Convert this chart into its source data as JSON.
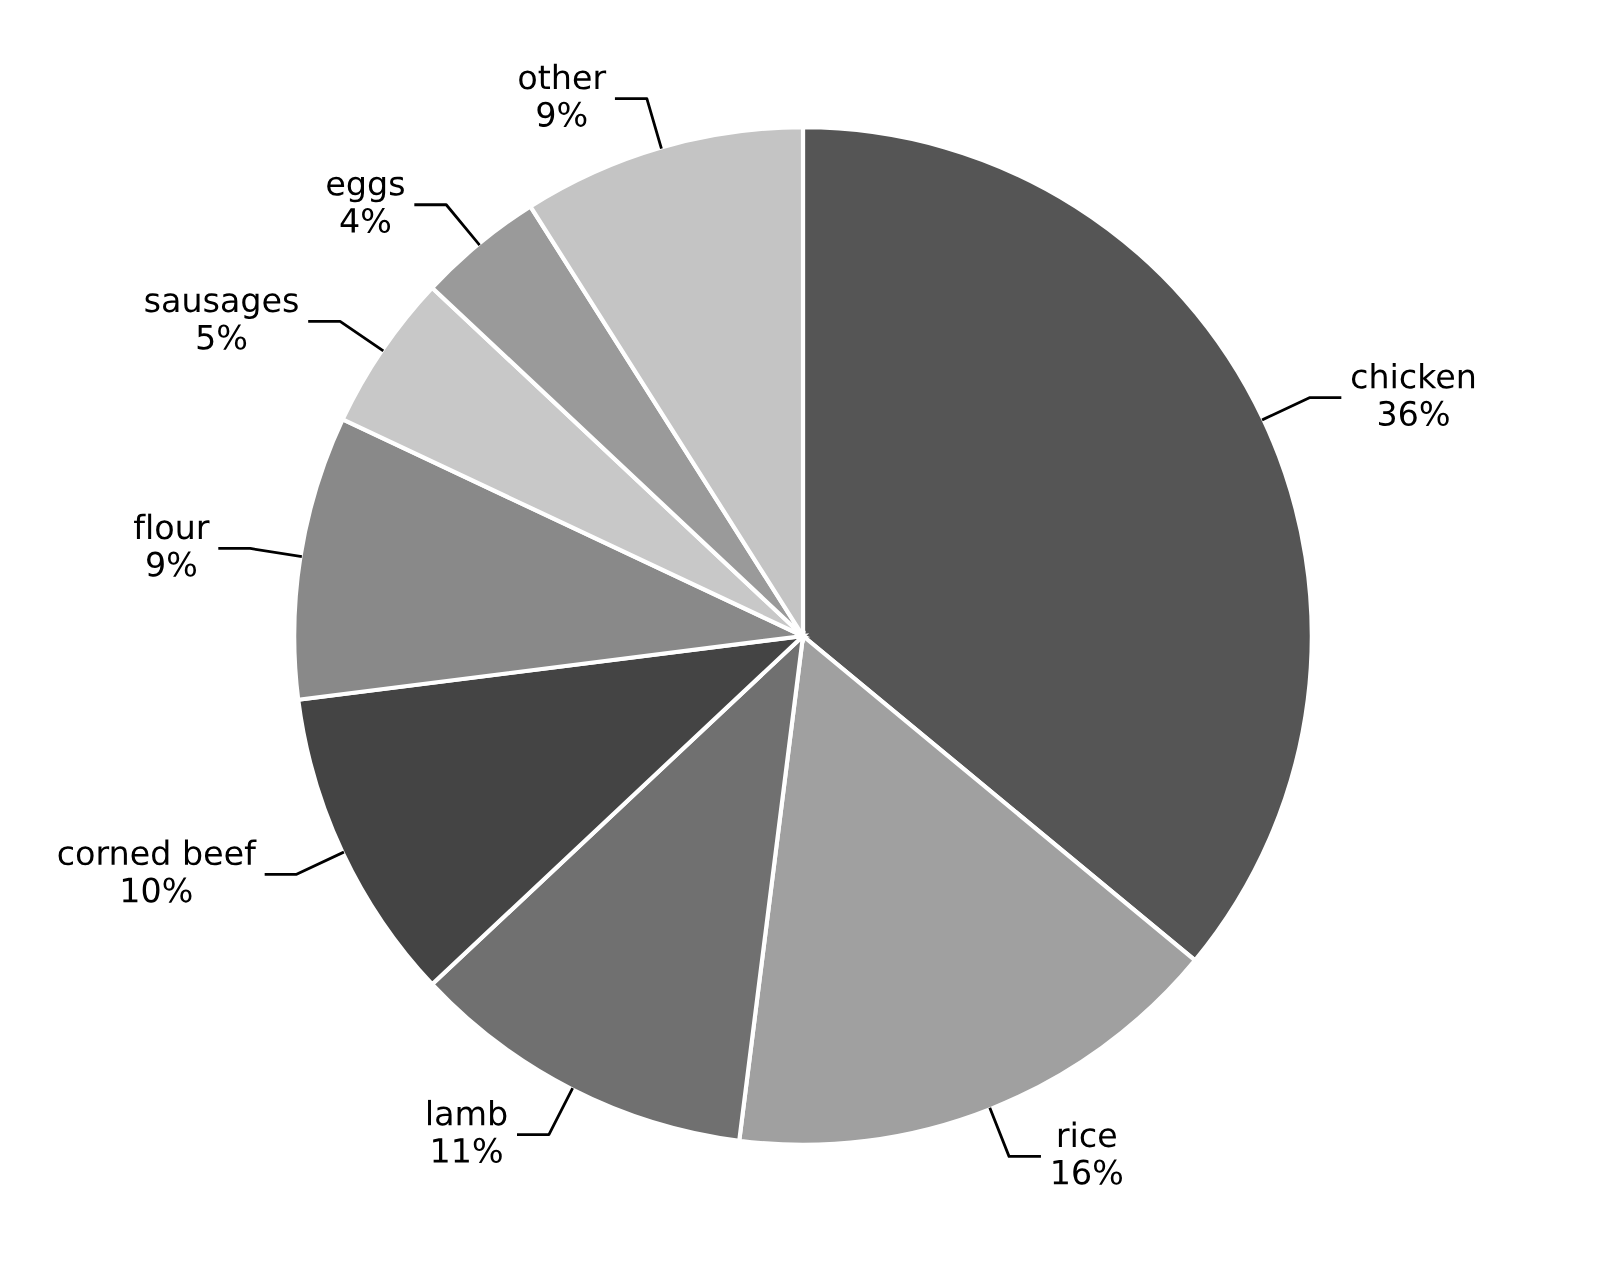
{
  "chart_data": {
    "type": "pie",
    "categories": [
      "chicken",
      "rice",
      "lamb",
      "corned beef",
      "flour",
      "sausages",
      "eggs",
      "other"
    ],
    "values": [
      36,
      16,
      11,
      10,
      9,
      5,
      4,
      9
    ],
    "value_labels": [
      "36%",
      "16%",
      "11%",
      "10%",
      "9%",
      "5%",
      "4%",
      "9%"
    ],
    "colors": [
      "#555555",
      "#a0a0a0",
      "#707070",
      "#444444",
      "#898989",
      "#c8c8c8",
      "#9a9a9a",
      "#c4c4c4"
    ],
    "legend": false
  }
}
